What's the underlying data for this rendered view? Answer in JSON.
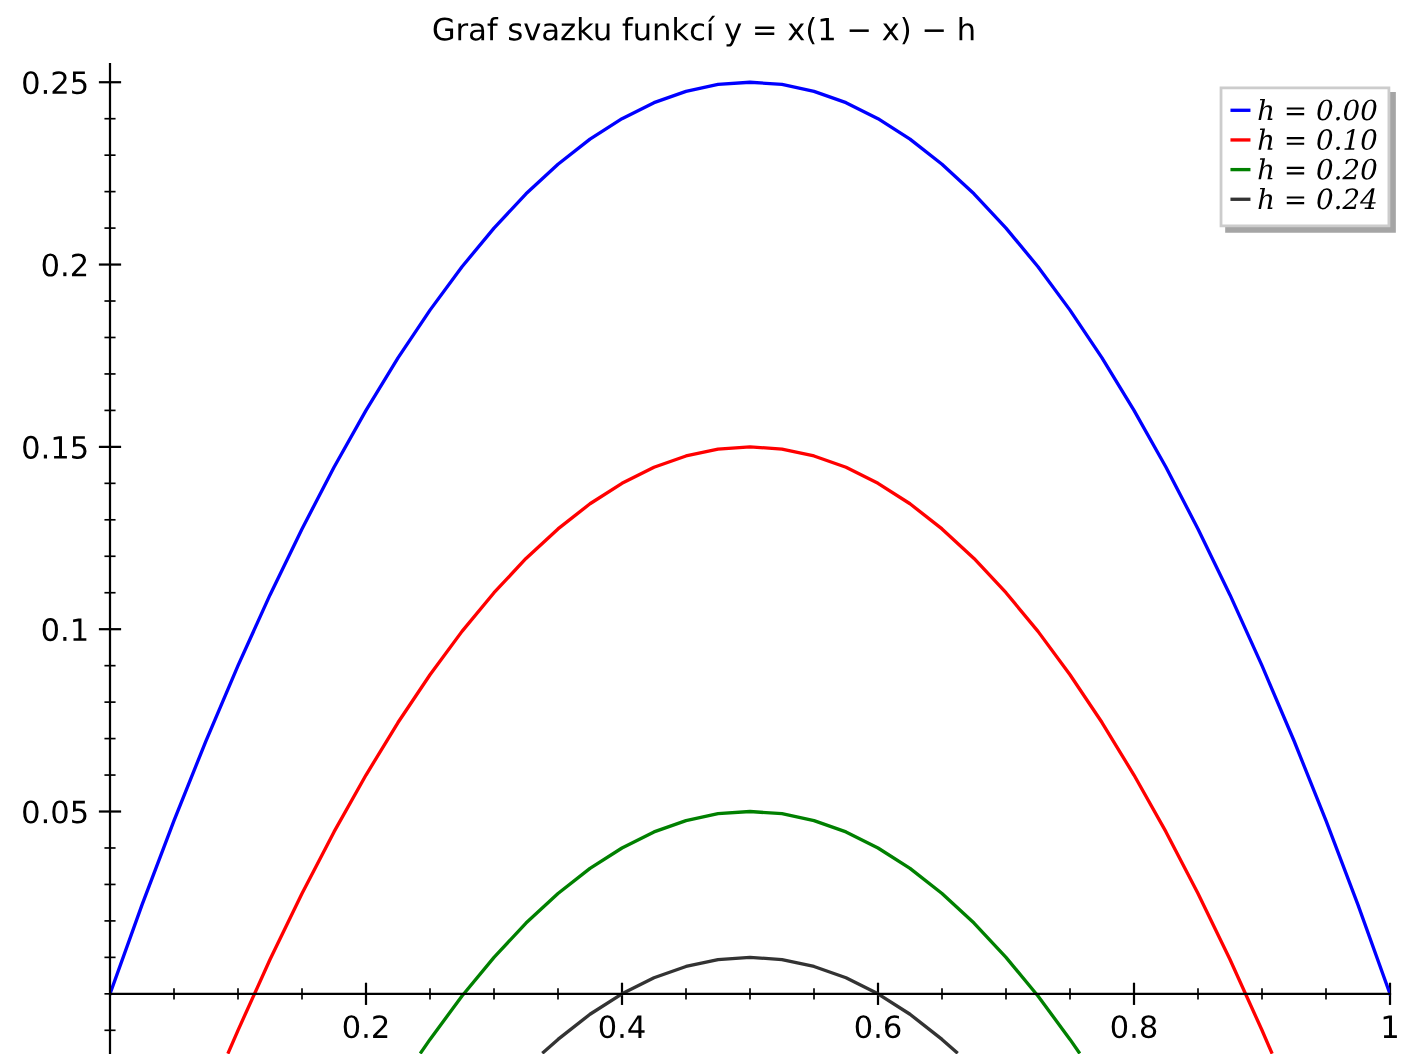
{
  "chart_data": {
    "type": "line",
    "title": "Graf svazku funkcí y = x(1 − x) − h",
    "series": [
      {
        "name": "h = 0.00",
        "color": "#0000ff",
        "x": [
          0,
          0.025,
          0.05,
          0.075,
          0.1,
          0.125,
          0.15,
          0.175,
          0.2,
          0.225,
          0.25,
          0.275,
          0.3,
          0.325,
          0.35,
          0.375,
          0.4,
          0.425,
          0.45,
          0.475,
          0.5,
          0.525,
          0.55,
          0.575,
          0.6,
          0.625,
          0.65,
          0.675,
          0.7,
          0.725,
          0.75,
          0.775,
          0.8,
          0.825,
          0.85,
          0.875,
          0.9,
          0.925,
          0.95,
          0.975,
          1
        ],
        "values": [
          0,
          0.0244,
          0.0475,
          0.0694,
          0.09,
          0.1094,
          0.1275,
          0.1444,
          0.16,
          0.1744,
          0.1875,
          0.1994,
          0.21,
          0.2194,
          0.2275,
          0.2344,
          0.24,
          0.2444,
          0.2475,
          0.2494,
          0.25,
          0.2494,
          0.2475,
          0.2444,
          0.24,
          0.2344,
          0.2275,
          0.2194,
          0.21,
          0.1994,
          0.1875,
          0.1744,
          0.16,
          0.1444,
          0.1275,
          0.1094,
          0.09,
          0.0694,
          0.0475,
          0.0244,
          0
        ]
      },
      {
        "name": "h = 0.10",
        "color": "#ff0000",
        "x": [
          0.0926,
          0.1,
          0.125,
          0.15,
          0.175,
          0.2,
          0.225,
          0.25,
          0.275,
          0.3,
          0.325,
          0.35,
          0.375,
          0.4,
          0.425,
          0.45,
          0.475,
          0.5,
          0.525,
          0.55,
          0.575,
          0.6,
          0.625,
          0.65,
          0.675,
          0.7,
          0.725,
          0.75,
          0.775,
          0.8,
          0.825,
          0.85,
          0.875,
          0.9,
          0.9074
        ],
        "values": [
          -0.016,
          -0.01,
          0.0094,
          0.0275,
          0.0444,
          0.06,
          0.0744,
          0.0875,
          0.0994,
          0.11,
          0.1194,
          0.1275,
          0.1344,
          0.14,
          0.1444,
          0.1475,
          0.1494,
          0.15,
          0.1494,
          0.1475,
          0.1444,
          0.14,
          0.1344,
          0.1275,
          0.1194,
          0.11,
          0.0994,
          0.0875,
          0.0744,
          0.06,
          0.0444,
          0.0275,
          0.0094,
          -0.01,
          -0.016
        ]
      },
      {
        "name": "h = 0.20",
        "color": "#008000",
        "x": [
          0.2431,
          0.25,
          0.275,
          0.3,
          0.325,
          0.35,
          0.375,
          0.4,
          0.425,
          0.45,
          0.475,
          0.5,
          0.525,
          0.55,
          0.575,
          0.6,
          0.625,
          0.65,
          0.675,
          0.7,
          0.725,
          0.75,
          0.7569
        ],
        "values": [
          -0.016,
          -0.0125,
          -0.0006,
          0.01,
          0.0194,
          0.0275,
          0.0344,
          0.04,
          0.0444,
          0.0475,
          0.0494,
          0.05,
          0.0494,
          0.0475,
          0.0444,
          0.04,
          0.0344,
          0.0275,
          0.0194,
          0.01,
          -0.0006,
          -0.0125,
          -0.016
        ]
      },
      {
        "name": "h = 0.24",
        "color": "#333333",
        "x": [
          0.3387,
          0.35,
          0.375,
          0.4,
          0.425,
          0.45,
          0.475,
          0.5,
          0.525,
          0.55,
          0.575,
          0.6,
          0.625,
          0.65,
          0.6613
        ],
        "values": [
          -0.016,
          -0.0125,
          -0.0056,
          0,
          0.0044,
          0.0075,
          0.0094,
          0.01,
          0.0094,
          0.0075,
          0.0044,
          0,
          -0.0056,
          -0.0125,
          -0.016
        ]
      }
    ],
    "xlim": [
      0,
      1
    ],
    "ylim": [
      -0.0165,
      0.255
    ],
    "xticks": [
      0.2,
      0.4,
      0.6,
      0.8,
      1
    ],
    "yticks": [
      0.05,
      0.1,
      0.15,
      0.2,
      0.25
    ],
    "legend": "top right",
    "grid": false
  }
}
